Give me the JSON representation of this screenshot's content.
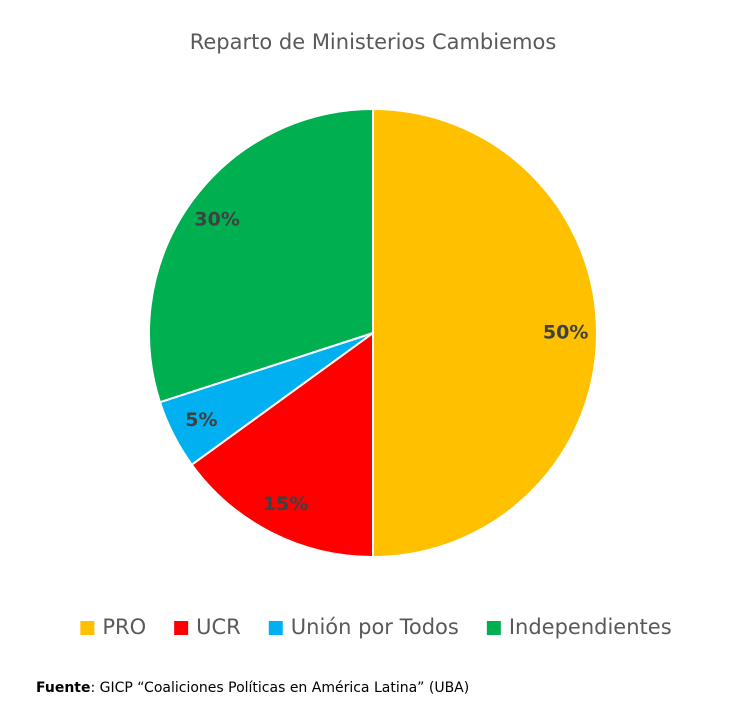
{
  "chart_data": {
    "type": "pie",
    "title": "Reparto de Ministerios Cambiemos",
    "categories": [
      "PRO",
      "UCR",
      "Unión por Todos",
      "Independientes"
    ],
    "values": [
      50,
      15,
      5,
      30
    ],
    "value_labels": [
      "50%",
      "15%",
      "5%",
      "30%"
    ],
    "colors": [
      "#FFC000",
      "#FF0000",
      "#00B0F0",
      "#00B050"
    ],
    "legend": "bottom",
    "source_label": "Fuente",
    "source": ": GICP “Coaliciones Políticas en América Latina” (UBA)"
  }
}
